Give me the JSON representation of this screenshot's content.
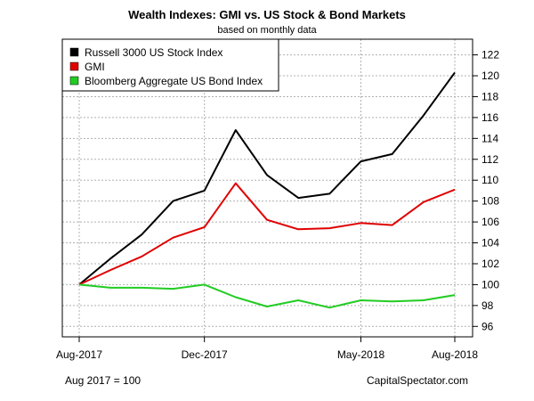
{
  "chart_data": {
    "type": "line",
    "title": "Wealth Indexes: GMI vs. US Stock & Bond Markets",
    "subtitle": "based on monthly data",
    "x": [
      "2017-08",
      "2017-09",
      "2017-10",
      "2017-11",
      "2017-12",
      "2018-01",
      "2018-02",
      "2018-03",
      "2018-04",
      "2018-05",
      "2018-06",
      "2018-07",
      "2018-08"
    ],
    "x_tick_labels": [
      "Aug-2017",
      "Dec-2017",
      "May-2018",
      "Aug-2018"
    ],
    "x_tick_months": [
      "2017-08",
      "2017-12",
      "2018-05",
      "2018-08"
    ],
    "y_ticks": [
      96,
      98,
      100,
      102,
      104,
      106,
      108,
      110,
      112,
      114,
      116,
      118,
      120,
      122
    ],
    "ylim": [
      95,
      123.5
    ],
    "y_axis_side": "right",
    "grid": true,
    "legend_position": "top-left",
    "series": [
      {
        "name": "Russell 3000 US Stock Index",
        "color": "#000000",
        "values": [
          100,
          102.5,
          104.8,
          108.0,
          109.0,
          114.8,
          110.5,
          108.3,
          108.7,
          111.8,
          112.5,
          116.2,
          120.3
        ]
      },
      {
        "name": "GMI",
        "color": "#e00000",
        "values": [
          100,
          101.4,
          102.7,
          104.5,
          105.5,
          109.7,
          106.2,
          105.3,
          105.4,
          105.9,
          105.7,
          107.9,
          109.1
        ]
      },
      {
        "name": "Bloomberg Aggregate US Bond Index",
        "color": "#22cc22",
        "values": [
          100,
          99.7,
          99.7,
          99.6,
          100.0,
          98.8,
          97.9,
          98.5,
          97.8,
          98.5,
          98.4,
          98.5,
          99.0
        ]
      }
    ],
    "footer_left": "Aug 2017 = 100",
    "footer_right": "CapitalSpectator.com"
  }
}
